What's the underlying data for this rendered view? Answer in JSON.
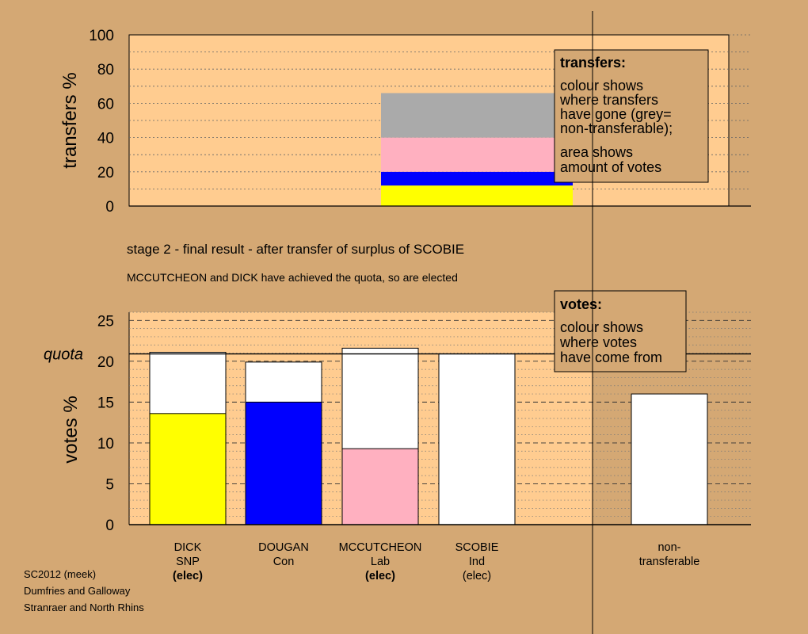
{
  "chart_data": [
    {
      "type": "bar",
      "ylabel": "transfers %",
      "ylim": [
        0,
        100
      ],
      "yticks": [
        "0",
        "20",
        "40",
        "60",
        "80",
        "100"
      ],
      "grid": "dotted",
      "stacked_bar": {
        "category": "SCOBIE surplus transfer",
        "segments": [
          {
            "from": 0,
            "to": 12,
            "color": "#ffff00"
          },
          {
            "from": 12,
            "to": 20,
            "color": "#0000ff"
          },
          {
            "from": 20,
            "to": 40,
            "color": "#ffb0c0"
          },
          {
            "from": 40,
            "to": 66,
            "color": "#aaaaaa"
          }
        ]
      },
      "annotation": {
        "title": "transfers:",
        "lines1": [
          "colour shows",
          "where transfers",
          "have gone (grey=",
          "non-transferable);"
        ],
        "lines2": [
          "area shows",
          "amount of votes"
        ]
      }
    },
    {
      "type": "bar",
      "ylabel": "votes %",
      "ylim": [
        0,
        26
      ],
      "yticks": [
        "0",
        "5",
        "10",
        "15",
        "20",
        "25"
      ],
      "quota_label": "quota",
      "quota": 20.9,
      "grid": "dashed",
      "bars": [
        {
          "name": [
            "DICK",
            "SNP",
            "(elec)"
          ],
          "bold_last": true,
          "total": 21.1,
          "colored": 13.6,
          "color": "#ffff00"
        },
        {
          "name": [
            "DOUGAN",
            "Con"
          ],
          "bold_last": false,
          "total": 19.9,
          "colored": 15.0,
          "color": "#0000ff"
        },
        {
          "name": [
            "MCCUTCHEON",
            "Lab",
            "(elec)"
          ],
          "bold_last": true,
          "total": 21.6,
          "colored": 9.3,
          "color": "#ffb0c0"
        },
        {
          "name": [
            "SCOBIE",
            "Ind",
            "(elec)"
          ],
          "bold_last": false,
          "total": 20.9,
          "colored": 0,
          "color": "#ffffff"
        },
        {
          "name": [
            "non-",
            "transferable"
          ],
          "bold_last": false,
          "total": 16.0,
          "colored": 0,
          "color": "#ffffff"
        }
      ],
      "annotation": {
        "title": "votes:",
        "lines": [
          "colour shows",
          "where votes",
          "have come from"
        ]
      }
    }
  ],
  "stage_title": "stage 2 - final result - after transfer of surplus of SCOBIE",
  "stage_note": "MCCUTCHEON and DICK have achieved the quota, so are elected",
  "footer": [
    "SC2012 (meek)",
    "Dumfries and Galloway",
    "Stranraer and North Rhins"
  ],
  "colors": {
    "background": "#d4a874",
    "plot": "#ffcc90"
  }
}
